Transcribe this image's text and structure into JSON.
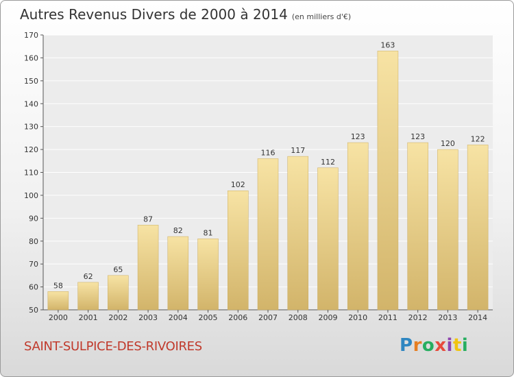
{
  "title": "Autres Revenus Divers de 2000 à 2014",
  "unit": "(en milliers d'€)",
  "commune": "SAINT-SULPICE-DES-RIVOIRES",
  "logo": {
    "text": "Proxiti",
    "letters": [
      {
        "char": "P",
        "color": "#2e86c1"
      },
      {
        "char": "r",
        "color": "#e67e22"
      },
      {
        "char": "o",
        "color": "#27ae60"
      },
      {
        "char": "x",
        "color": "#e74c3c"
      },
      {
        "char": "i",
        "color": "#8e44ad"
      },
      {
        "char": "t",
        "color": "#f1c40f"
      },
      {
        "char": "i",
        "color": "#27ae60"
      }
    ]
  },
  "colors": {
    "bar_light": "#f7e3a4",
    "bar_dark": "#d2b46a",
    "commune": "#c0392b"
  },
  "chart_data": {
    "type": "bar",
    "title": "Autres Revenus Divers de 2000 à 2014",
    "categories": [
      "2000",
      "2001",
      "2002",
      "2003",
      "2004",
      "2005",
      "2006",
      "2007",
      "2008",
      "2009",
      "2010",
      "2011",
      "2012",
      "2013",
      "2014"
    ],
    "values": [
      58,
      62,
      65,
      87,
      82,
      81,
      102,
      116,
      117,
      112,
      123,
      163,
      123,
      120,
      122
    ],
    "ylim": [
      50,
      170
    ],
    "yticks": [
      50,
      60,
      70,
      80,
      90,
      100,
      110,
      120,
      130,
      140,
      150,
      160,
      170
    ],
    "grid": true
  }
}
